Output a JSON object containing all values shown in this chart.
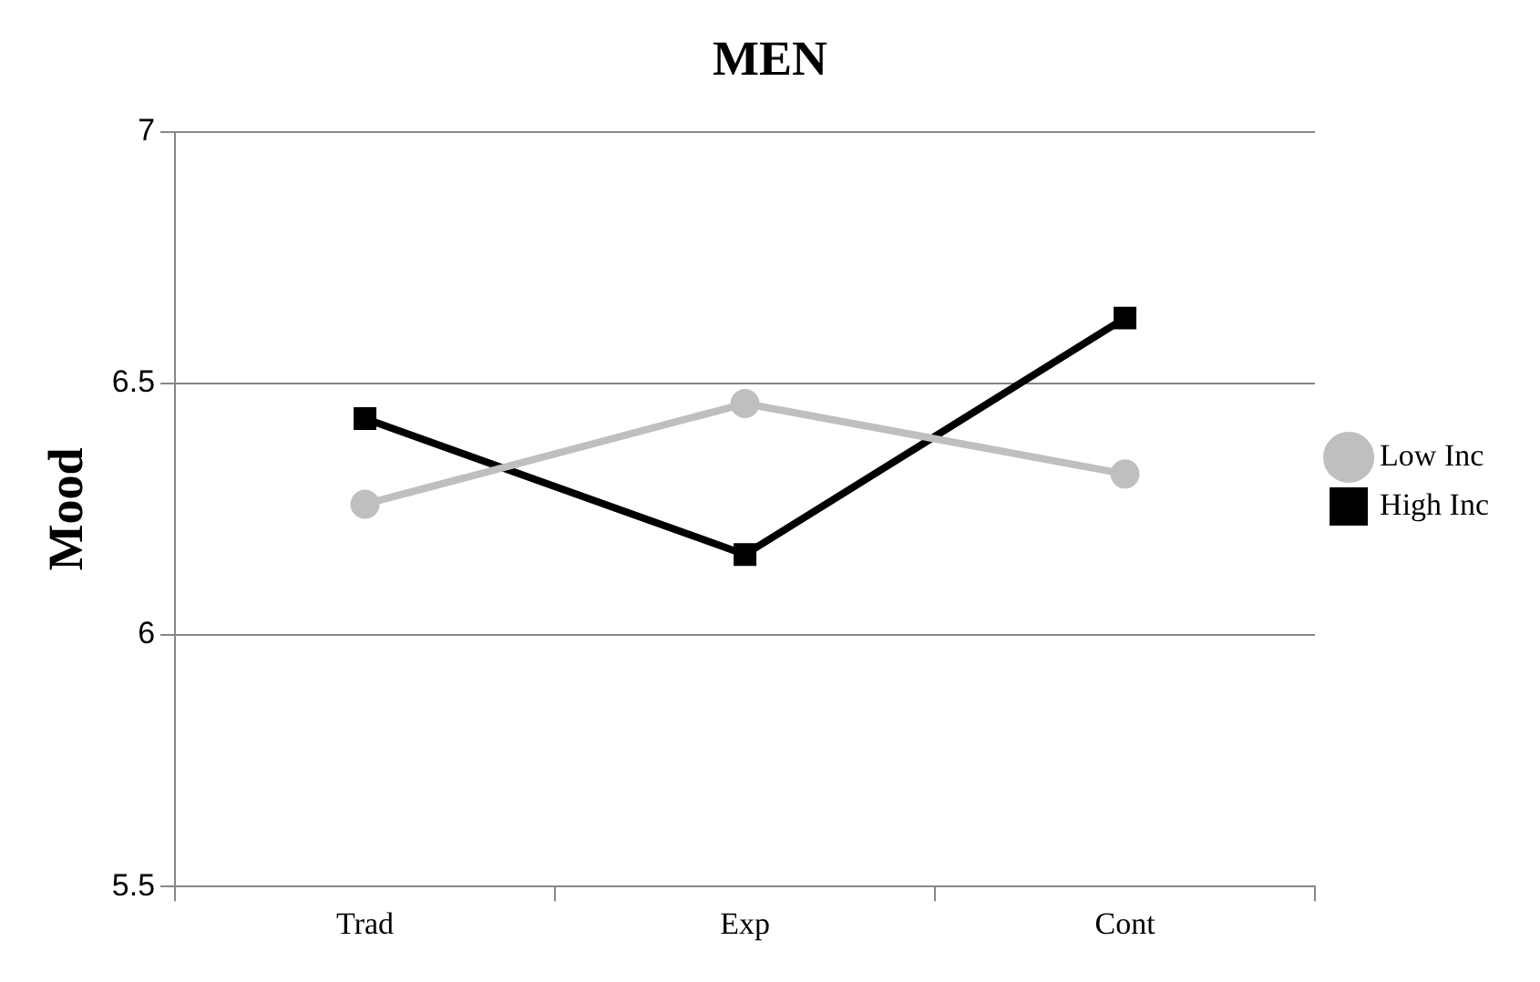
{
  "chart_data": {
    "type": "line",
    "title": "MEN",
    "ylabel": "Mood",
    "categories": [
      "Trad",
      "Exp",
      "Cont"
    ],
    "series": [
      {
        "name": "Low Inc",
        "color": "#bfbfbf",
        "values": [
          6.26,
          6.46,
          6.32
        ],
        "marker": "circle"
      },
      {
        "name": "High Inc",
        "color": "#000000",
        "values": [
          6.43,
          6.16,
          6.63
        ],
        "marker": "square"
      }
    ],
    "ylim": [
      5.5,
      7
    ],
    "yticks": [
      5.5,
      6,
      6.5,
      7
    ],
    "grid": "y",
    "legend": "right"
  }
}
